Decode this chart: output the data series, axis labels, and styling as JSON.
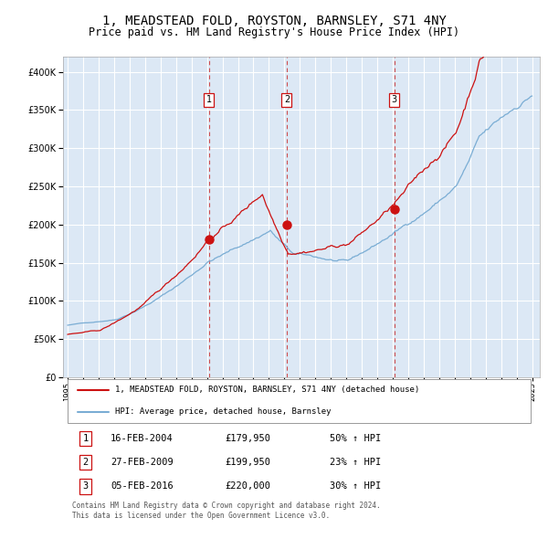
{
  "title": "1, MEADSTEAD FOLD, ROYSTON, BARNSLEY, S71 4NY",
  "subtitle": "Price paid vs. HM Land Registry's House Price Index (HPI)",
  "title_fontsize": 10,
  "subtitle_fontsize": 8.5,
  "plot_bg_color": "#dce8f5",
  "grid_color": "#ffffff",
  "hpi_color": "#7aadd4",
  "price_color": "#cc1111",
  "marker_color": "#cc1111",
  "dashed_color": "#cc3333",
  "ylim": [
    0,
    420000
  ],
  "yticks": [
    0,
    50000,
    100000,
    150000,
    200000,
    250000,
    300000,
    350000,
    400000
  ],
  "xlim_start": 1994.7,
  "xlim_end": 2025.5,
  "xticks": [
    1995,
    1996,
    1997,
    1998,
    1999,
    2000,
    2001,
    2002,
    2003,
    2004,
    2005,
    2006,
    2007,
    2008,
    2009,
    2010,
    2011,
    2012,
    2013,
    2014,
    2015,
    2016,
    2017,
    2018,
    2019,
    2020,
    2021,
    2022,
    2023,
    2024,
    2025
  ],
  "sale_dates": [
    2004.12,
    2009.15,
    2016.09
  ],
  "sale_prices": [
    179950,
    199950,
    220000
  ],
  "sale_labels": [
    "1",
    "2",
    "3"
  ],
  "legend_line1": "1, MEADSTEAD FOLD, ROYSTON, BARNSLEY, S71 4NY (detached house)",
  "legend_line2": "HPI: Average price, detached house, Barnsley",
  "table_rows": [
    [
      "1",
      "16-FEB-2004",
      "£179,950",
      "50% ↑ HPI"
    ],
    [
      "2",
      "27-FEB-2009",
      "£199,950",
      "23% ↑ HPI"
    ],
    [
      "3",
      "05-FEB-2016",
      "£220,000",
      "30% ↑ HPI"
    ]
  ],
  "footer": "Contains HM Land Registry data © Crown copyright and database right 2024.\nThis data is licensed under the Open Government Licence v3.0."
}
